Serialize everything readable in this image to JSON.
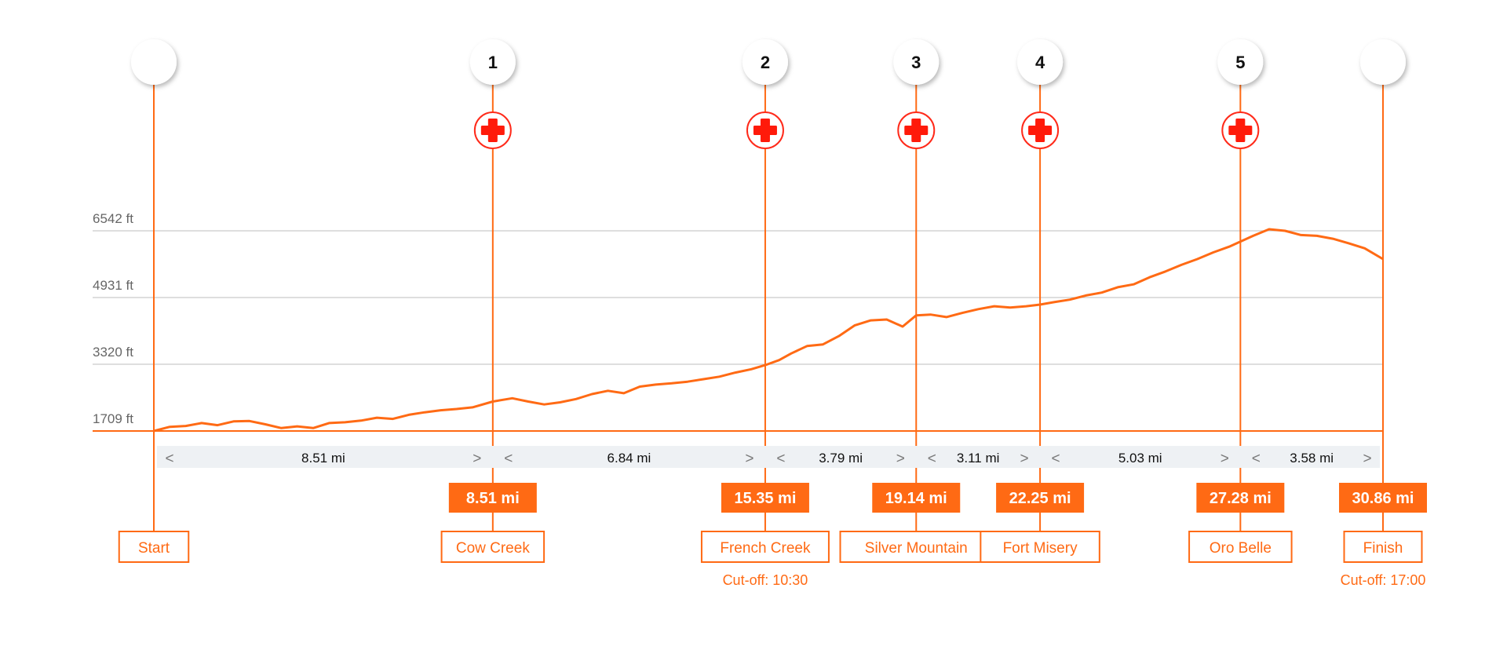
{
  "chart_data": {
    "type": "area",
    "title": "",
    "xlabel": "",
    "ylabel": "",
    "distance_unit": "mi",
    "total_distance": 30.86,
    "y_ticks": [
      {
        "value": 1709,
        "label": "1709 ft"
      },
      {
        "value": 3320,
        "label": "3320 ft"
      },
      {
        "value": 4931,
        "label": "4931 ft"
      },
      {
        "value": 6542,
        "label": "6542 ft"
      }
    ],
    "ylim": [
      1709,
      6542
    ],
    "series": [
      {
        "x": [
          0,
          0.4,
          0.8,
          1.2,
          1.6,
          2.0,
          2.4,
          2.8,
          3.2,
          3.6,
          4.0,
          4.4,
          4.8,
          5.2,
          5.6,
          6.0,
          6.4,
          6.8,
          7.2,
          7.6,
          8.0,
          8.51,
          9.0,
          9.4,
          9.8,
          10.2,
          10.6,
          11.0,
          11.4,
          11.8,
          12.2,
          12.6,
          13.0,
          13.4,
          13.8,
          14.2,
          14.6,
          15.0,
          15.35,
          15.7,
          16.0,
          16.4,
          16.8,
          17.2,
          17.6,
          18.0,
          18.4,
          18.8,
          19.14,
          19.5,
          19.9,
          20.3,
          20.7,
          21.1,
          21.5,
          21.9,
          22.25,
          22.6,
          23.0,
          23.4,
          23.8,
          24.2,
          24.6,
          25.0,
          25.4,
          25.8,
          26.2,
          26.6,
          27.0,
          27.28,
          27.6,
          28.0,
          28.4,
          28.8,
          29.2,
          29.6,
          30.0,
          30.4,
          30.86
        ],
        "values": [
          1709,
          1810,
          1830,
          1900,
          1850,
          1940,
          1950,
          1870,
          1780,
          1820,
          1780,
          1900,
          1920,
          1960,
          2030,
          2000,
          2100,
          2160,
          2210,
          2240,
          2280,
          2420,
          2500,
          2420,
          2350,
          2400,
          2480,
          2600,
          2680,
          2620,
          2780,
          2830,
          2860,
          2900,
          2960,
          3020,
          3120,
          3200,
          3300,
          3420,
          3580,
          3760,
          3800,
          4000,
          4260,
          4380,
          4400,
          4230,
          4500,
          4520,
          4460,
          4560,
          4650,
          4720,
          4690,
          4720,
          4760,
          4820,
          4880,
          4980,
          5050,
          5180,
          5250,
          5420,
          5560,
          5720,
          5860,
          6020,
          6160,
          6280,
          6420,
          6580,
          6542,
          6440,
          6420,
          6350,
          6240,
          6120,
          5860
        ]
      }
    ],
    "waypoints": [
      {
        "id": "",
        "distance": 0,
        "distance_label": "",
        "name": "Start",
        "cutoff": "",
        "aid_station": false
      },
      {
        "id": "1",
        "distance": 8.51,
        "distance_label": "8.51 mi",
        "name": "Cow Creek",
        "cutoff": "",
        "aid_station": true
      },
      {
        "id": "2",
        "distance": 15.35,
        "distance_label": "15.35 mi",
        "name": "French Creek",
        "cutoff": "Cut-off: 10:30",
        "aid_station": true
      },
      {
        "id": "3",
        "distance": 19.14,
        "distance_label": "19.14 mi",
        "name": "Silver Mountain",
        "cutoff": "",
        "aid_station": true
      },
      {
        "id": "4",
        "distance": 22.25,
        "distance_label": "22.25 mi",
        "name": "Fort Misery",
        "cutoff": "",
        "aid_station": true
      },
      {
        "id": "5",
        "distance": 27.28,
        "distance_label": "27.28 mi",
        "name": "Oro Belle",
        "cutoff": "",
        "aid_station": true
      },
      {
        "id": "",
        "distance": 30.86,
        "distance_label": "30.86 mi",
        "name": "Finish",
        "cutoff": "Cut-off: 17:00",
        "aid_station": false
      }
    ],
    "segments": [
      {
        "label": "8.51 mi",
        "left_arrow": "<",
        "right_arrow": ">"
      },
      {
        "label": "6.84 mi",
        "left_arrow": "<",
        "right_arrow": ">"
      },
      {
        "label": "3.79 mi",
        "left_arrow": "<",
        "right_arrow": ">"
      },
      {
        "label": "3.11 mi",
        "left_arrow": "<",
        "right_arrow": ">"
      },
      {
        "label": "5.03 mi",
        "left_arrow": "<",
        "right_arrow": ">"
      },
      {
        "label": "3.58 mi",
        "left_arrow": "<",
        "right_arrow": ">"
      }
    ],
    "colors": {
      "accent": "#ff6a14",
      "aid_station": "#ff1a0a",
      "segment_bar": "#eef1f4"
    },
    "icons": {
      "aid_station": "medical-cross-icon"
    }
  }
}
